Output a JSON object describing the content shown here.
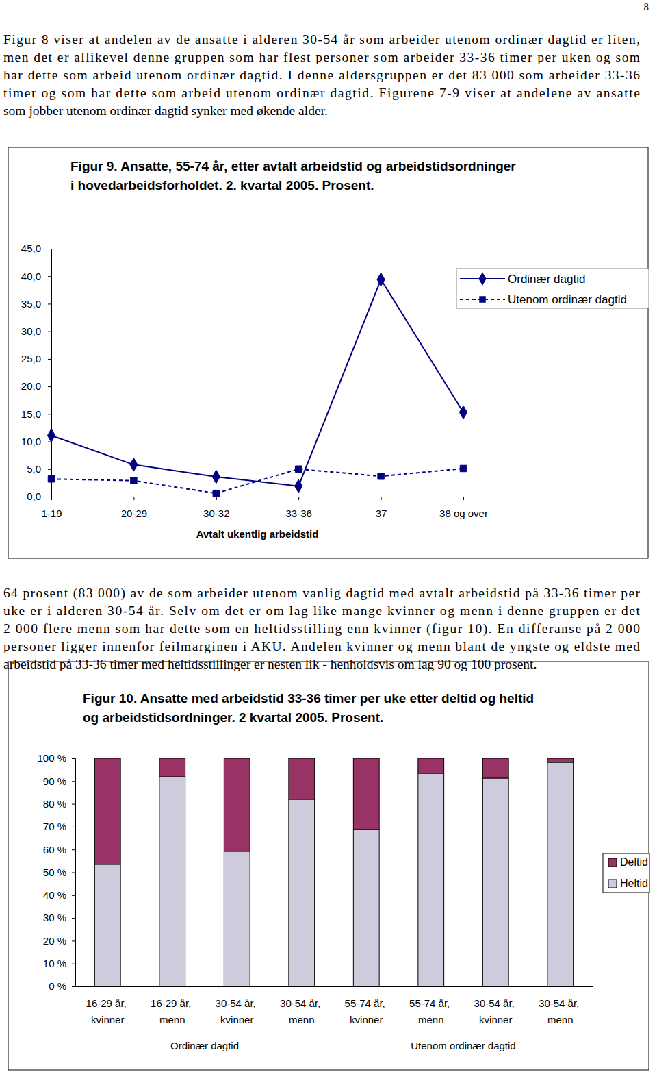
{
  "page_number": 8,
  "paragraphs": [
    [
      "Figur 8 viser at andelen av de ansatte i alderen 30-54 år som arbeider utenom ordinær dagtid er liten,",
      "men det er allikevel denne gruppen som har flest personer som arbeider 33-36 timer per uken og som",
      "har dette som arbeid utenom ordinær dagtid. I denne aldersgruppen er det 83 000 som arbeider 33-36",
      "timer og som har dette som arbeid utenom ordinær dagtid. Figurene 7-9 viser at andelene av ansatte",
      "som jobber utenom ordinær dagtid synker med økende alder."
    ],
    [
      "64 prosent (83 000) av de som arbeider utenom vanlig dagtid med avtalt arbeidstid på 33-36 timer per",
      "uke er i alderen 30-54 år. Selv om det er om lag like mange kvinner og menn i denne gruppen er det",
      "2 000 flere menn som har dette som en heltidsstilling enn kvinner (figur 10). En differanse på 2 000",
      "personer ligger innenfor feilmarginen i AKU. Andelen kvinner og menn blant de yngste og eldste med",
      "arbeidstid på 33-36 timer med heltidsstillinger er nesten lik - henholdsvis om lag 90 og 100 prosent."
    ]
  ],
  "chart_data": [
    {
      "type": "line",
      "title": "Figur 9. Ansatte, 55-74 år, etter avtalt arbeidstid og arbeidstidsordninger\ni hovedarbeidsforholdet. 2. kvartal 2005. Prosent.",
      "x_label": "Avtalt ukentlig arbeidstid",
      "categories": [
        "1-19",
        "20-29",
        "30-32",
        "33-36",
        "37",
        "38 og over"
      ],
      "series": [
        {
          "name": "Ordinær dagtid",
          "color": "#000080",
          "marker": "diamond",
          "line_style": "solid",
          "values": [
            11.1,
            5.8,
            3.6,
            1.9,
            39.4,
            15.3
          ]
        },
        {
          "name": "Utenom ordinær dagtid",
          "color": "#000080",
          "marker": "square",
          "line_style": "dashed",
          "values": [
            3.2,
            2.9,
            0.6,
            5.0,
            3.7,
            5.1
          ]
        }
      ],
      "ylim": [
        0,
        45
      ],
      "yticks": [
        {
          "value": 0,
          "label": "0,0"
        },
        {
          "value": 5,
          "label": "5,0"
        },
        {
          "value": 10,
          "label": "10,0"
        },
        {
          "value": 15,
          "label": "15,0"
        },
        {
          "value": 20,
          "label": "20,0"
        },
        {
          "value": 25,
          "label": "25,0"
        },
        {
          "value": 30,
          "label": "30,0"
        },
        {
          "value": 35,
          "label": "35,0"
        },
        {
          "value": 40,
          "label": "40,0"
        },
        {
          "value": 45,
          "label": "45,0"
        }
      ],
      "grid": false,
      "legend": "top-right"
    },
    {
      "type": "bar",
      "stacked": true,
      "title": "Figur 10. Ansatte med arbeidstid 33-36 timer per uke etter deltid og heltid\nog arbeidstidsordninger. 2 kvartal 2005. Prosent.",
      "categories": [
        "16-29 år, kvinner",
        "16-29 år, menn",
        "30-54 år, kvinner",
        "30-54 år, menn",
        "55-74 år, kvinner",
        "55-74 år, menn",
        "30-54 år, kvinner",
        "30-54 år, menn"
      ],
      "x_groups": [
        "Ordinær dagtid",
        "Utenom ordinær dagtid"
      ],
      "series": [
        {
          "name": "Deltid",
          "color": "#993366",
          "values": [
            46.5,
            8.1,
            40.8,
            18.0,
            31.2,
            6.6,
            8.7,
            1.8
          ]
        },
        {
          "name": "Heltid",
          "color": "#ccccdd",
          "values": [
            53.5,
            91.9,
            59.2,
            82.0,
            68.8,
            93.4,
            91.3,
            98.2
          ]
        }
      ],
      "ylim": [
        0,
        100
      ],
      "yticks": [
        {
          "value": 0,
          "label": "0 %"
        },
        {
          "value": 10,
          "label": "10 %"
        },
        {
          "value": 20,
          "label": "20 %"
        },
        {
          "value": 30,
          "label": "30 %"
        },
        {
          "value": 40,
          "label": "40 %"
        },
        {
          "value": 50,
          "label": "50 %"
        },
        {
          "value": 60,
          "label": "60 %"
        },
        {
          "value": 70,
          "label": "70 %"
        },
        {
          "value": 80,
          "label": "80 %"
        },
        {
          "value": 90,
          "label": "90 %"
        },
        {
          "value": 100,
          "label": "100 %"
        }
      ],
      "grid": false,
      "legend": "right"
    }
  ]
}
